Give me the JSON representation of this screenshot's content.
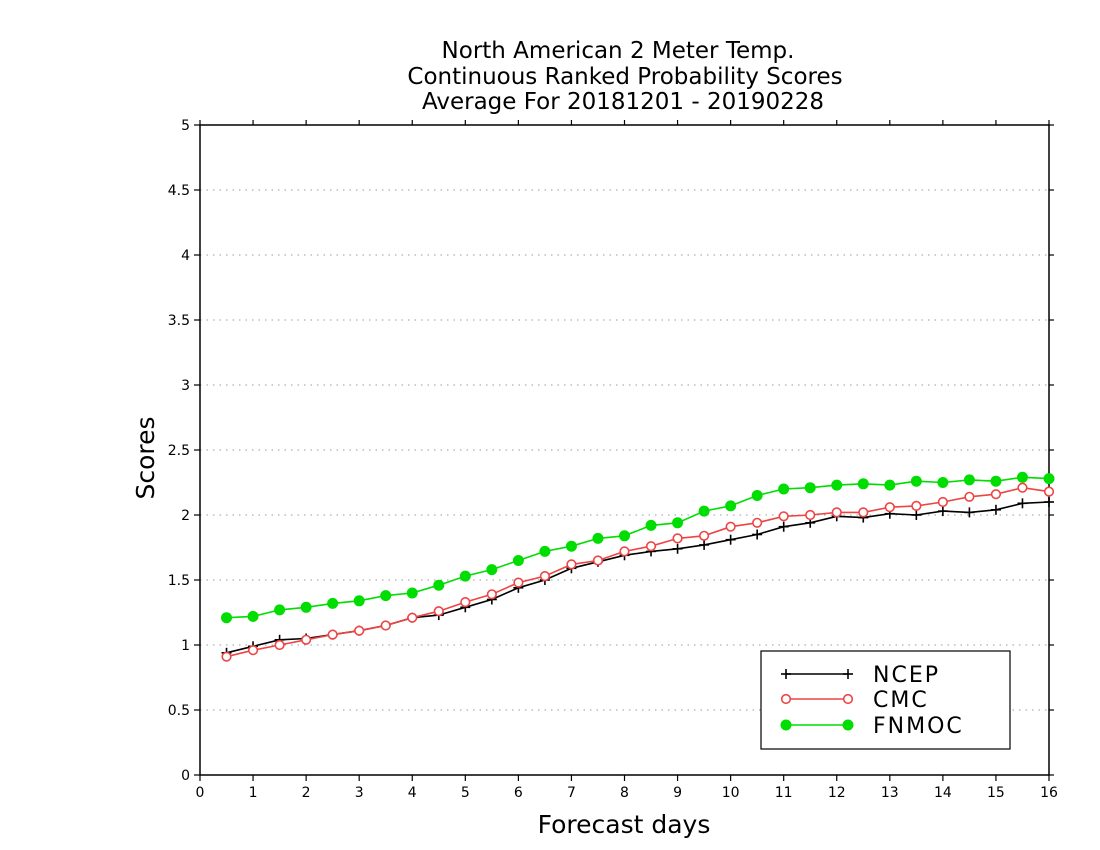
{
  "chart_data": {
    "type": "line",
    "title_lines": [
      "North American 2 Meter Temp.",
      "Continuous Ranked Probability Scores",
      "Average For 20181201 - 20190228"
    ],
    "xlabel": "Forecast days",
    "ylabel": "Scores",
    "xlim": [
      0,
      16
    ],
    "ylim": [
      0,
      5
    ],
    "x_ticks": [
      "0",
      "1",
      "2",
      "3",
      "4",
      "5",
      "6",
      "7",
      "8",
      "9",
      "10",
      "11",
      "12",
      "13",
      "14",
      "15",
      "16"
    ],
    "y_ticks": [
      "0",
      "0.5",
      "1",
      "1.5",
      "2",
      "2.5",
      "3",
      "3.5",
      "4",
      "4.5",
      "5"
    ],
    "grid": "horizontal dotted",
    "legend_position": "bottom-right",
    "x": [
      0.5,
      1.0,
      1.5,
      2.0,
      2.5,
      3.0,
      3.5,
      4.0,
      4.5,
      5.0,
      5.5,
      6.0,
      6.5,
      7.0,
      7.5,
      8.0,
      8.5,
      9.0,
      9.5,
      10.0,
      10.5,
      11.0,
      11.5,
      12.0,
      12.5,
      13.0,
      13.5,
      14.0,
      14.5,
      15.0,
      15.5,
      16.0
    ],
    "series": [
      {
        "name": "NCEP",
        "color": "#000000",
        "marker": "plus",
        "values": [
          0.94,
          0.99,
          1.04,
          1.05,
          1.08,
          1.11,
          1.15,
          1.21,
          1.23,
          1.29,
          1.35,
          1.44,
          1.5,
          1.59,
          1.64,
          1.69,
          1.72,
          1.74,
          1.77,
          1.81,
          1.85,
          1.91,
          1.94,
          1.99,
          1.98,
          2.01,
          2.0,
          2.03,
          2.02,
          2.04,
          2.09,
          2.1
        ]
      },
      {
        "name": "CMC",
        "color": "#ee4444",
        "marker": "open-circle",
        "values": [
          0.91,
          0.96,
          1.0,
          1.04,
          1.08,
          1.11,
          1.15,
          1.21,
          1.26,
          1.33,
          1.39,
          1.48,
          1.53,
          1.62,
          1.65,
          1.72,
          1.76,
          1.82,
          1.84,
          1.91,
          1.94,
          1.99,
          2.0,
          2.02,
          2.02,
          2.06,
          2.07,
          2.1,
          2.14,
          2.16,
          2.21,
          2.18
        ]
      },
      {
        "name": "FNMOC",
        "color": "#00dd00",
        "marker": "filled-circle",
        "values": [
          1.21,
          1.22,
          1.27,
          1.29,
          1.32,
          1.34,
          1.38,
          1.4,
          1.46,
          1.53,
          1.58,
          1.65,
          1.72,
          1.76,
          1.82,
          1.84,
          1.92,
          1.94,
          2.03,
          2.07,
          2.15,
          2.2,
          2.21,
          2.23,
          2.24,
          2.23,
          2.26,
          2.25,
          2.27,
          2.26,
          2.29,
          2.28
        ]
      }
    ]
  }
}
